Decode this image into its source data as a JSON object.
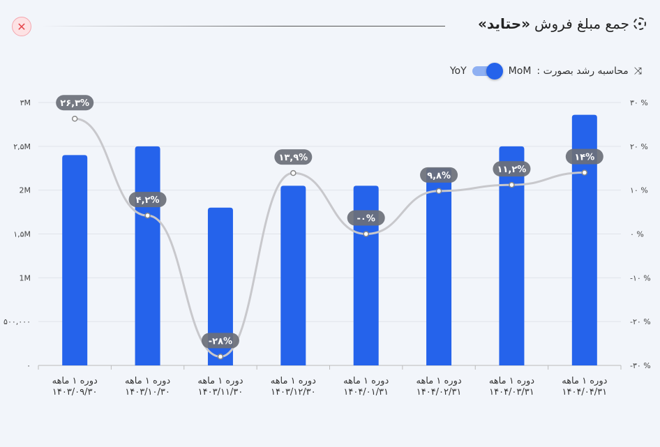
{
  "header": {
    "title_prefix": "جمع مبلغ فروش",
    "title_bold": "«حتاید»",
    "close_icon": "close-icon",
    "title_icon": "target-icon"
  },
  "toggle": {
    "label": "محاسبه رشد بصورت :",
    "on_label": "MoM",
    "off_label": "YoY",
    "state": "MoM",
    "icon": "trend-arrows-icon"
  },
  "chart_data": {
    "type": "bar",
    "categories": [
      [
        "دوره ۱ ماهه",
        "۱۴۰۳/۰۹/۳۰"
      ],
      [
        "دوره ۱ ماهه",
        "۱۴۰۳/۱۰/۳۰"
      ],
      [
        "دوره ۱ ماهه",
        "۱۴۰۳/۱۱/۳۰"
      ],
      [
        "دوره ۱ ماهه",
        "۱۴۰۳/۱۲/۳۰"
      ],
      [
        "دوره ۱ ماهه",
        "۱۴۰۴/۰۱/۳۱"
      ],
      [
        "دوره ۱ ماهه",
        "۱۴۰۴/۰۲/۳۱"
      ],
      [
        "دوره ۱ ماهه",
        "۱۴۰۴/۰۳/۳۱"
      ],
      [
        "دوره ۱ ماهه",
        "۱۴۰۴/۰۴/۳۱"
      ]
    ],
    "bar_values": [
      2400000,
      2500000,
      1800000,
      2050000,
      2050000,
      2250000,
      2500000,
      2860000
    ],
    "growth_values": [
      26.3,
      4.2,
      -28,
      13.9,
      0,
      9.8,
      11.2,
      14
    ],
    "growth_labels": [
      "۲۶,۳%",
      "۴,۲%",
      "-۲۸%",
      "۱۳,۹%",
      "-۰%",
      "۹,۸%",
      "۱۱,۲%",
      "۱۴%"
    ],
    "ylim": [
      0,
      3000000
    ],
    "y2lim": [
      -30,
      30
    ],
    "yticks": [
      "۰",
      "۵۰۰,۰۰۰",
      "1M",
      "۱,۵M",
      "2M",
      "۲,۵M",
      "۳M"
    ],
    "y2ticks": [
      "-۳۰ %",
      "-۲۰ %",
      "-۱۰ %",
      "۰ %",
      "۱۰ %",
      "۲۰ %",
      "۳۰ %"
    ],
    "grid": true,
    "colors": {
      "bar": "#2563eb",
      "line": "#c8c8cc",
      "label_bg": "#6b6f78"
    }
  }
}
